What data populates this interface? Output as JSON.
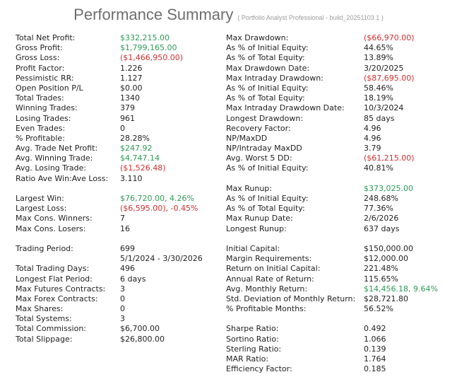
{
  "header": {
    "title": "Performance Summary",
    "subtitle": "( Portfolio Analyst Professional - build_20251103.1 )"
  },
  "colors": {
    "green": "#2E9B57",
    "red": "#D32F2F",
    "text": "#1f1f1f",
    "title": "#6e6e6e",
    "subtitle": "#9b9b9b"
  },
  "left_column": {
    "rows": [
      {
        "label": "Total Net Profit:",
        "value": "$332,215.00",
        "color": "green"
      },
      {
        "label": "Gross Profit:",
        "value": "$1,799,165.00",
        "color": "green"
      },
      {
        "label": "Gross Loss:",
        "value": "($1,466,950.00)",
        "color": "red"
      },
      {
        "label": "Profit Factor:",
        "value": "1.226"
      },
      {
        "label": "Pessimistic RR:",
        "value": "1.127"
      },
      {
        "label": "Open Position P/L",
        "value": "$0.00"
      },
      {
        "label": "Total Trades:",
        "value": "1340"
      },
      {
        "label": "Winning Trades:",
        "value": "379"
      },
      {
        "label": "Losing Trades:",
        "value": "961"
      },
      {
        "label": "Even Trades:",
        "value": "0"
      },
      {
        "label": "% Profitable:",
        "value": "28.28%"
      },
      {
        "label": "Avg. Trade Net Profit:",
        "value": "$247.92",
        "color": "green"
      },
      {
        "label": "Avg. Winning Trade:",
        "value": "$4,747.14",
        "color": "green"
      },
      {
        "label": "Avg. Losing Trade:",
        "value": "($1,526.48)",
        "color": "red"
      },
      {
        "label": "Ratio Ave Win:Ave Loss:",
        "value": "3.110"
      },
      {
        "spacer": true
      },
      {
        "label": "Largest Win:",
        "value": "$76,720.00, 4.26%",
        "color": "green"
      },
      {
        "label": "Largest Loss:",
        "value": "($6,595.00), -0.45%",
        "color": "red"
      },
      {
        "label": "Max Cons. Winners:",
        "value": "7"
      },
      {
        "label": "Max Cons. Losers:",
        "value": "16"
      },
      {
        "spacer": true
      },
      {
        "label": "Trading Period:",
        "value": "699"
      },
      {
        "label": "",
        "value": "5/1/2024 - 3/30/2026"
      },
      {
        "label": "Total Trading Days:",
        "value": "496"
      },
      {
        "label": "Longest Flat Period:",
        "value": "6 days"
      },
      {
        "label": "Max Futures Contracts:",
        "value": "3"
      },
      {
        "label": "Max Forex Contracts:",
        "value": "0"
      },
      {
        "label": "Max Shares:",
        "value": "0"
      },
      {
        "label": "Total Systems:",
        "value": "3"
      },
      {
        "label": "Total Commission:",
        "value": "$6,700.00"
      },
      {
        "label": "Total Slippage:",
        "value": "$26,800.00"
      }
    ]
  },
  "right_column": {
    "rows": [
      {
        "label": "Max Drawdown:",
        "value": "($66,970.00)",
        "color": "red"
      },
      {
        "label": "As % of Initial Equity:",
        "value": "44.65%"
      },
      {
        "label": "As % of Total Equity:",
        "value": "13.89%"
      },
      {
        "label": "Max Drawdown Date:",
        "value": "3/20/2025"
      },
      {
        "label": "Max Intraday Drawdown:",
        "value": "($87,695.00)",
        "color": "red"
      },
      {
        "label": "As % of Initial Equity:",
        "value": "58.46%"
      },
      {
        "label": "As % of Total Equity:",
        "value": "18.19%"
      },
      {
        "label": "Max Intraday Drawdown Date:",
        "value": "10/3/2024"
      },
      {
        "label": "Longest Drawdown:",
        "value": "85 days"
      },
      {
        "label": "Recovery Factor:",
        "value": "4.96"
      },
      {
        "label": "NP/MaxDD",
        "value": "4.96"
      },
      {
        "label": "NP/Intraday MaxDD",
        "value": "3.79"
      },
      {
        "label": "Avg. Worst 5 DD:",
        "value": "($61,215.00)",
        "color": "red"
      },
      {
        "label": "As % of Initial Equity:",
        "value": "40.81%"
      },
      {
        "spacer": true
      },
      {
        "label": "Max Runup:",
        "value": "$373,025.00",
        "color": "green"
      },
      {
        "label": "As % of Initial Equity:",
        "value": "248.68%"
      },
      {
        "label": "As % of Total Equity:",
        "value": "77.36%"
      },
      {
        "label": "Max Runup Date:",
        "value": "2/6/2026"
      },
      {
        "label": "Longest Runup:",
        "value": "637 days"
      },
      {
        "spacer": true
      },
      {
        "label": "Initial Capital:",
        "value": "$150,000.00"
      },
      {
        "label": "Margin Requirements:",
        "value": "$12,000.00"
      },
      {
        "label": "Return on Initial Capital:",
        "value": "221.48%"
      },
      {
        "label": "Annual Rate of Return:",
        "value": "115.65%"
      },
      {
        "label": "Avg. Monthly Return:",
        "value": "$14,456.18, 9.64%",
        "color": "green"
      },
      {
        "label": "Std. Deviation of Monthly Return:",
        "value": "$28,721.80"
      },
      {
        "label": "% Profitable Months:",
        "value": "56.52%"
      },
      {
        "spacer": true
      },
      {
        "label": "Sharpe Ratio:",
        "value": "0.492"
      },
      {
        "label": "Sortino Ratio:",
        "value": "1.066"
      },
      {
        "label": "Sterling Ratio:",
        "value": "0.139"
      },
      {
        "label": "MAR Ratio:",
        "value": "1.764"
      },
      {
        "label": "Efficiency Factor:",
        "value": "0.185"
      }
    ]
  }
}
